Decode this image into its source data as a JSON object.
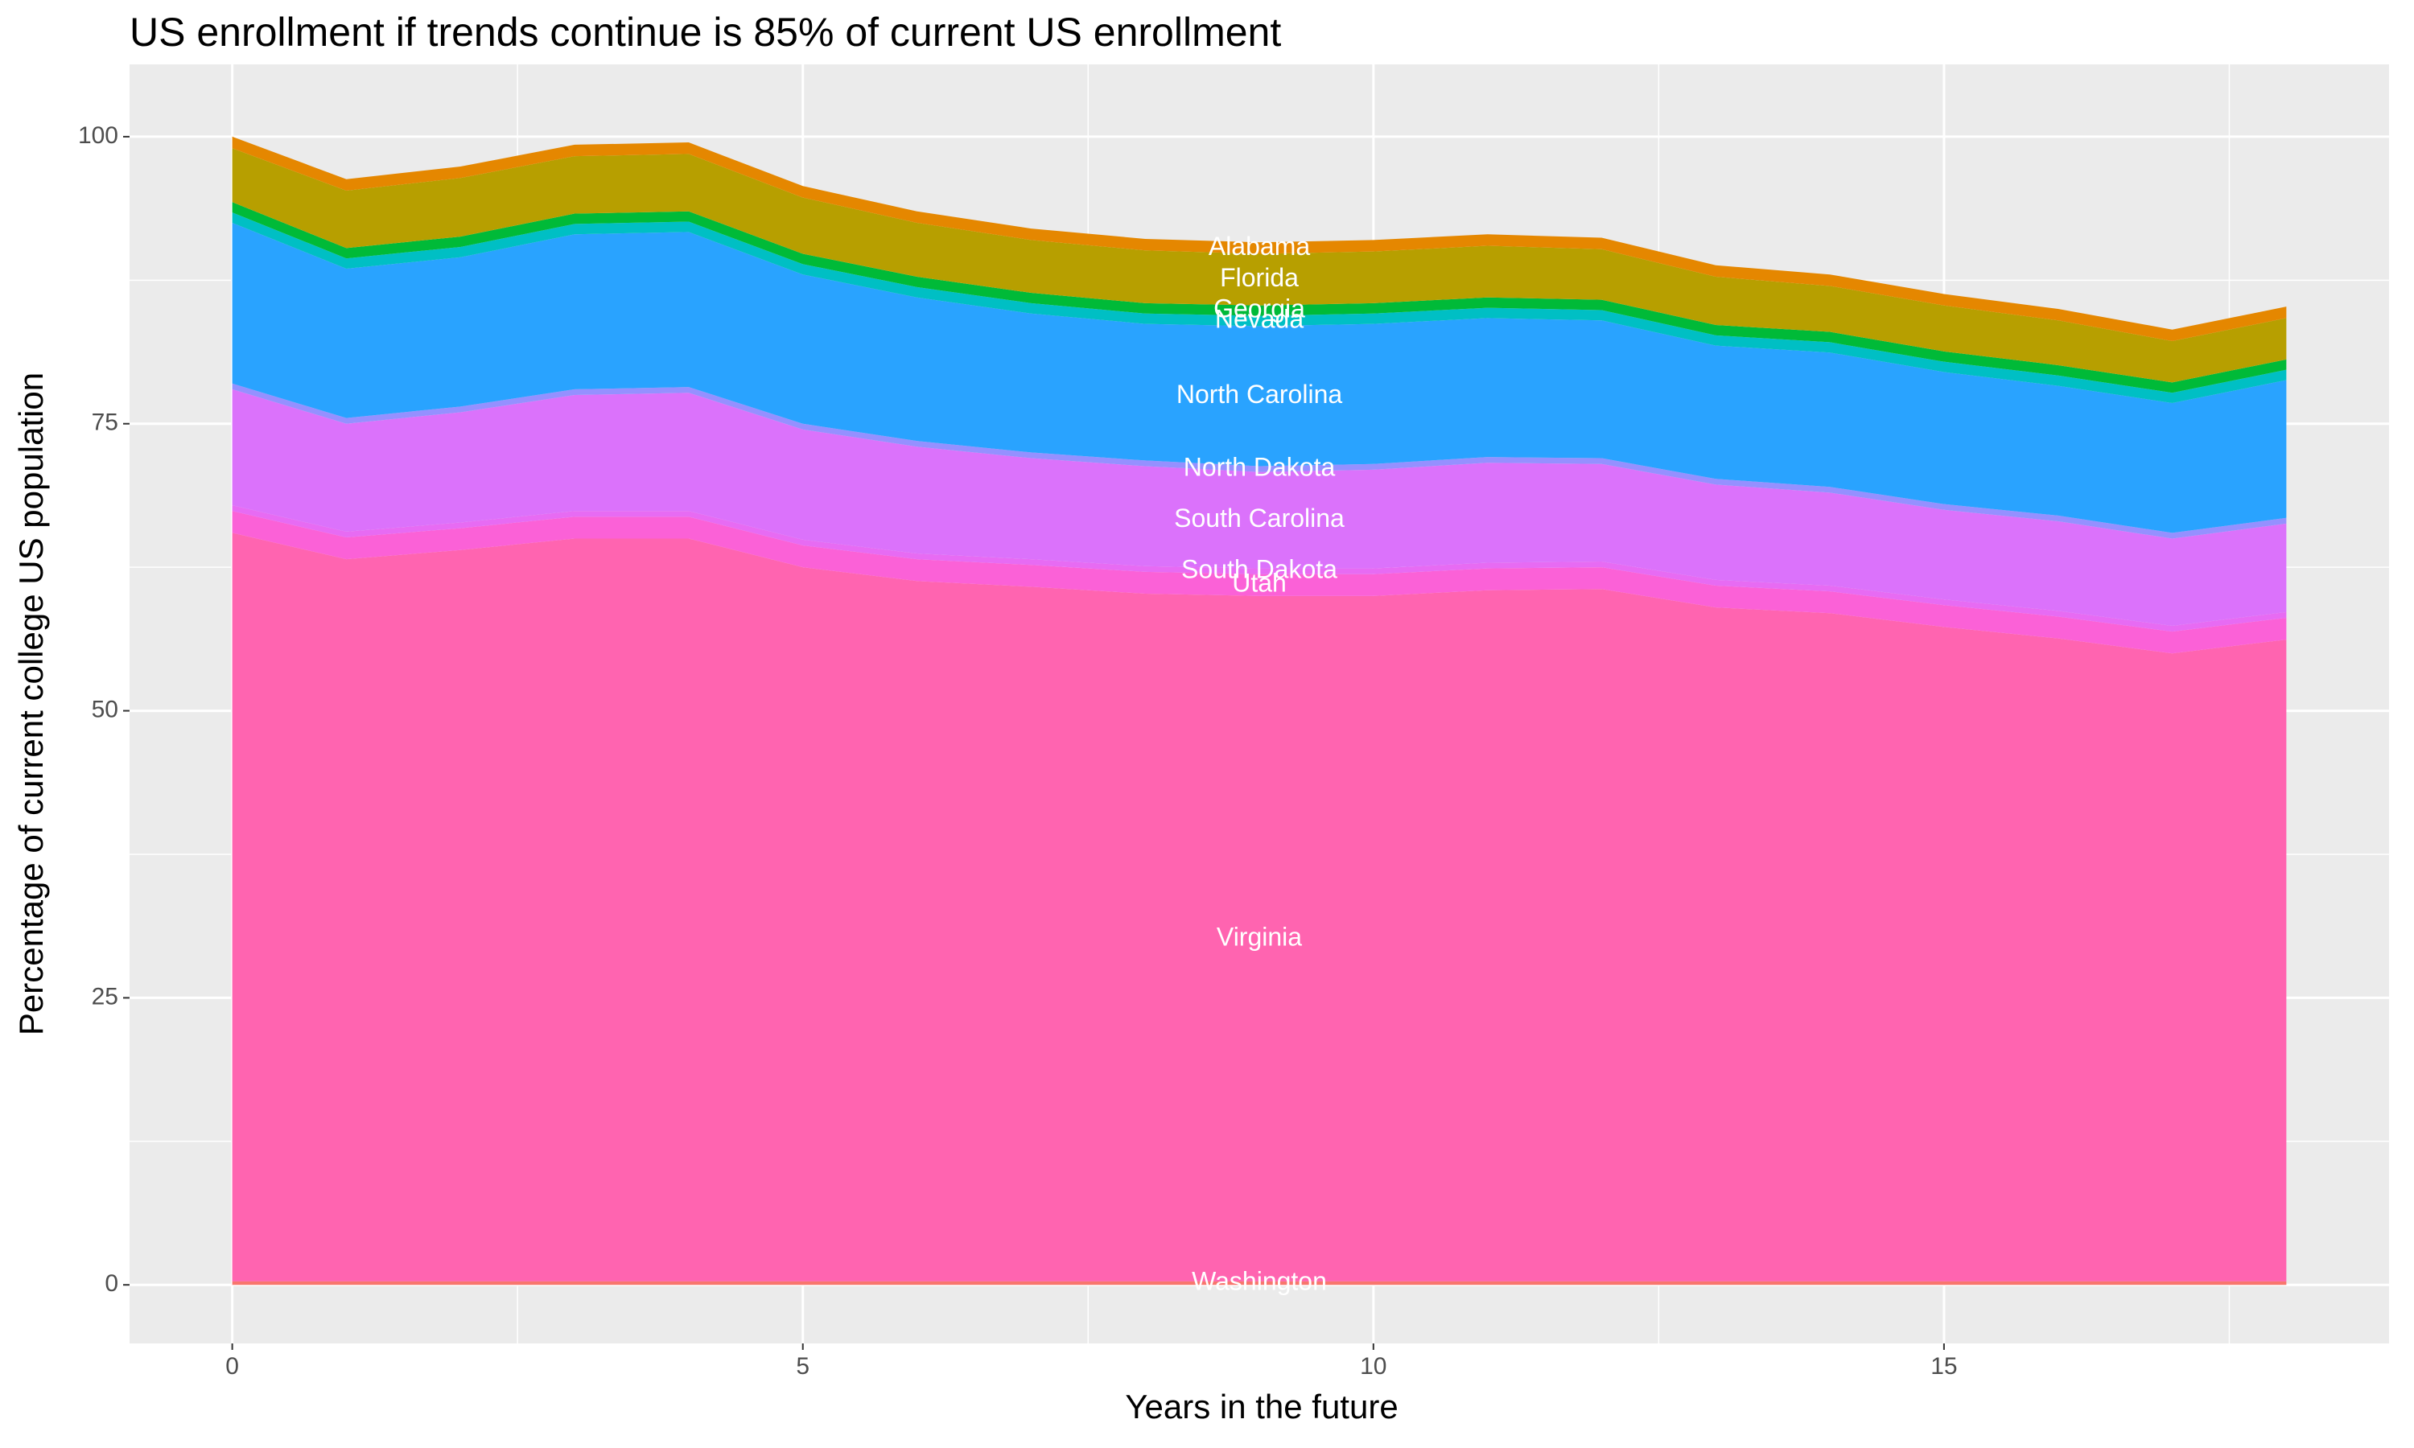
{
  "chart_data": {
    "type": "stacked_area",
    "title": "US enrollment if trends continue is 85% of current US enrollment",
    "x_label": "Years in the future",
    "y_label": "Percentage of current college US population",
    "x": [
      0,
      1,
      2,
      3,
      4,
      5,
      6,
      7,
      8,
      9,
      10,
      11,
      12,
      13,
      14,
      15,
      16,
      17,
      18
    ],
    "xlim": [
      -0.9,
      18.9
    ],
    "xticks": [
      0,
      5,
      10,
      15
    ],
    "ylim": [
      -5.1,
      106.3
    ],
    "yticks": [
      0,
      25,
      50,
      75,
      100
    ],
    "grid": true,
    "label_at_x": 9,
    "series": [
      {
        "name": "Washington",
        "color": "#f8766d",
        "values": [
          0.3,
          0.3,
          0.3,
          0.3,
          0.3,
          0.3,
          0.3,
          0.3,
          0.3,
          0.3,
          0.3,
          0.3,
          0.3,
          0.3,
          0.3,
          0.3,
          0.3,
          0.3,
          0.3
        ]
      },
      {
        "name": "Virginia",
        "color": "#ff64b0",
        "values": [
          65.2,
          62.9,
          63.7,
          64.7,
          64.7,
          62.2,
          61,
          60.5,
          59.9,
          59.7,
          59.7,
          60.2,
          60.3,
          58.7,
          58.2,
          57,
          56,
          54.7,
          55.9
        ]
      },
      {
        "name": "Utah",
        "color": "#fb61d7",
        "values": [
          1.9,
          1.9,
          1.9,
          1.9,
          1.9,
          1.9,
          1.9,
          1.9,
          1.9,
          1.9,
          1.9,
          1.9,
          1.9,
          1.9,
          1.9,
          1.9,
          1.9,
          1.9,
          1.9
        ]
      },
      {
        "name": "South Dakota",
        "color": "#e76bf3",
        "values": [
          0.5,
          0.5,
          0.5,
          0.5,
          0.5,
          0.5,
          0.5,
          0.5,
          0.5,
          0.5,
          0.5,
          0.5,
          0.5,
          0.5,
          0.5,
          0.5,
          0.5,
          0.5,
          0.5
        ]
      },
      {
        "name": "South Carolina",
        "color": "#db72fb",
        "values": [
          10.1,
          9.4,
          9.6,
          10.1,
          10.3,
          9.6,
          9.3,
          8.8,
          8.7,
          8.4,
          8.6,
          8.7,
          8.5,
          8.3,
          8.1,
          7.8,
          7.8,
          7.6,
          7.7
        ]
      },
      {
        "name": "North Dakota",
        "color": "#9590ff",
        "values": [
          0.5,
          0.5,
          0.5,
          0.5,
          0.5,
          0.5,
          0.5,
          0.5,
          0.5,
          0.5,
          0.5,
          0.5,
          0.5,
          0.5,
          0.5,
          0.5,
          0.5,
          0.5,
          0.5
        ]
      },
      {
        "name": "North Carolina",
        "color": "#29a3ff",
        "values": [
          14,
          13,
          13,
          13.5,
          13.5,
          13,
          12.5,
          12.1,
          11.9,
          12.2,
          12.2,
          12.1,
          12,
          11.6,
          11.7,
          11.5,
          11.3,
          11.3,
          12
        ]
      },
      {
        "name": "Nevada",
        "color": "#00bfc4",
        "values": [
          0.9,
          0.9,
          0.9,
          0.9,
          0.9,
          0.9,
          0.9,
          0.9,
          0.9,
          0.9,
          0.9,
          0.9,
          0.9,
          0.9,
          0.9,
          0.9,
          0.9,
          0.9,
          0.9
        ]
      },
      {
        "name": "Georgia",
        "color": "#00ba38",
        "values": [
          0.9,
          0.9,
          0.9,
          0.9,
          0.9,
          0.9,
          0.9,
          0.9,
          0.9,
          0.9,
          0.9,
          0.9,
          0.9,
          0.9,
          0.9,
          0.9,
          0.9,
          0.9,
          0.9
        ]
      },
      {
        "name": "Florida",
        "color": "#b79f00",
        "values": [
          4.7,
          5,
          5.1,
          5,
          5,
          4.9,
          4.7,
          4.6,
          4.6,
          4.5,
          4.5,
          4.5,
          4.4,
          4.2,
          4,
          4,
          3.9,
          3.6,
          3.6
        ]
      },
      {
        "name": "Alabama",
        "color": "#e58700",
        "values": [
          1,
          1,
          1,
          1,
          1,
          1,
          1,
          1,
          1,
          1,
          1,
          1,
          1,
          1,
          1,
          1,
          1,
          1,
          1
        ]
      }
    ]
  }
}
